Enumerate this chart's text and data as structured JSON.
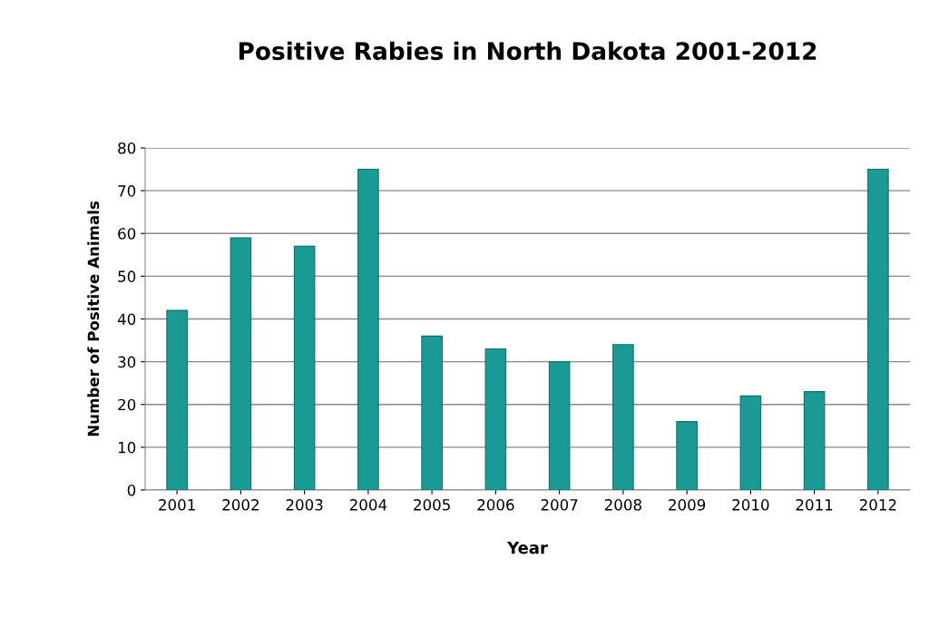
{
  "chart_data": {
    "type": "bar",
    "title": "Positive Rabies in North Dakota 2001-2012",
    "xlabel": "Year",
    "ylabel": "Number of Positive Animals",
    "categories": [
      "2001",
      "2002",
      "2003",
      "2004",
      "2005",
      "2006",
      "2007",
      "2008",
      "2009",
      "2010",
      "2011",
      "2012"
    ],
    "values": [
      42,
      59,
      57,
      75,
      36,
      33,
      30,
      34,
      16,
      22,
      23,
      75
    ],
    "color": "#1a9a94",
    "ylim": [
      0,
      80
    ],
    "yticks": [
      0,
      10,
      20,
      30,
      40,
      50,
      60,
      70,
      80
    ],
    "grid": "y",
    "legend": false
  }
}
